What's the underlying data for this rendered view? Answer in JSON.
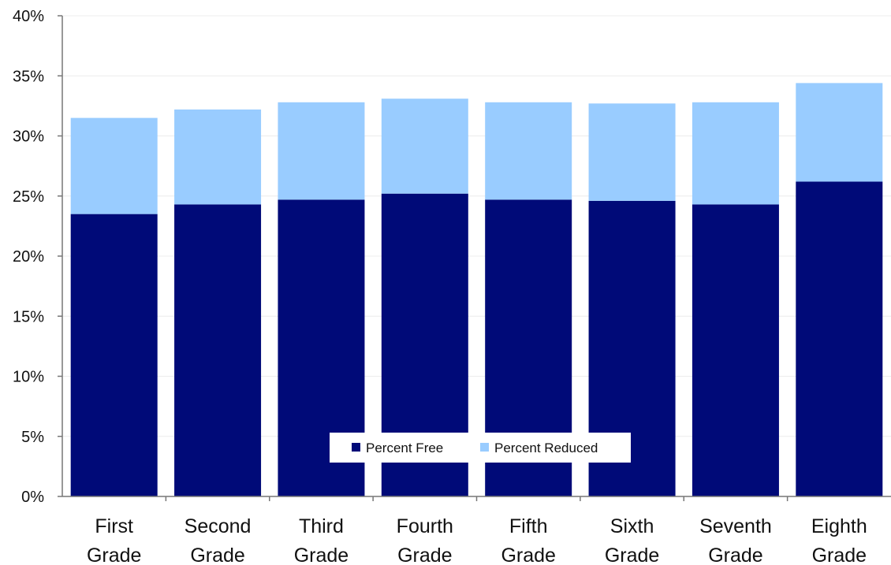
{
  "chart_data": {
    "type": "bar",
    "stacked": true,
    "title": "",
    "xlabel": "",
    "ylabel": "",
    "ylim": [
      0,
      40
    ],
    "y_ticks": [
      "0%",
      "5%",
      "10%",
      "15%",
      "20%",
      "25%",
      "30%",
      "35%",
      "40%"
    ],
    "grid": true,
    "legend_position": "bottom-center",
    "categories": [
      [
        "First",
        "Grade"
      ],
      [
        "Second",
        "Grade"
      ],
      [
        "Third",
        "Grade"
      ],
      [
        "Fourth",
        "Grade"
      ],
      [
        "Fifth",
        "Grade"
      ],
      [
        "Sixth",
        "Grade"
      ],
      [
        "Seventh",
        "Grade"
      ],
      [
        "Eighth",
        "Grade"
      ]
    ],
    "series": [
      {
        "name": "Percent Free",
        "color": "#000a78",
        "values": [
          23.5,
          24.3,
          24.7,
          25.2,
          24.7,
          24.6,
          24.3,
          26.2
        ]
      },
      {
        "name": "Percent Reduced",
        "color": "#99ccff",
        "values": [
          8.0,
          7.9,
          8.1,
          7.9,
          8.1,
          8.1,
          8.5,
          8.2
        ]
      }
    ]
  }
}
